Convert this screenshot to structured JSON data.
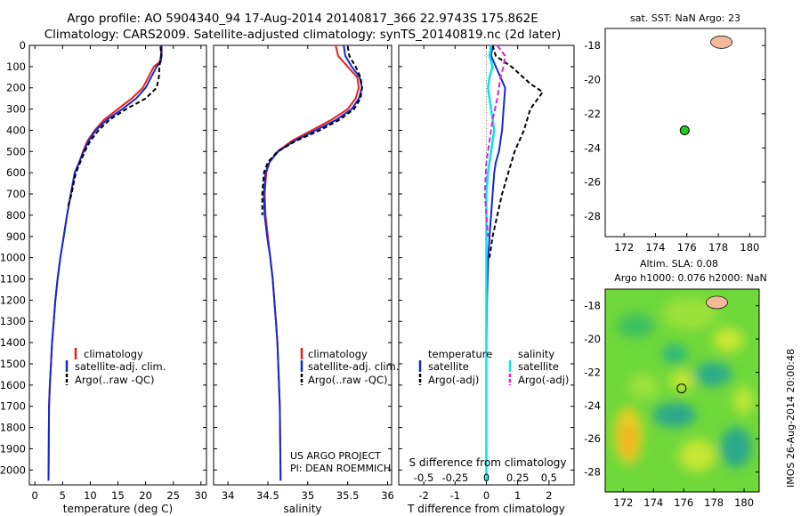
{
  "titles": {
    "line1": "Argo profile: AO 5904340_94 17-Aug-2014 20140817_366 22.9743S 175.862E",
    "line2": "Climatology: CARS2009. Satellite-adjusted climatology: synTS_20140819.nc (2d later)"
  },
  "credit": {
    "project": "US ARGO PROJECT",
    "pi": "PI: DEAN ROEMMICH"
  },
  "side_stamp": "IMOS 26-Aug-2014 20:00:48",
  "legend_left": {
    "climatology": "climatology",
    "satellite": "satellite-adj. clim.",
    "argo": "Argo(..raw -QC)"
  },
  "legend_diff": {
    "temperature_head": "temperature",
    "salinity_head": "salinity",
    "t_sat": "satellite",
    "t_argo": "Argo(-adj)",
    "s_sat": "satellite",
    "s_argo": "Argo(-adj)"
  },
  "colors": {
    "climatology": "#e8201a",
    "satellite": "#1428d4",
    "argo": "#000000",
    "s_sat": "#00e8e8",
    "s_argo": "#e020e0",
    "float": "#22cc22",
    "land": "#f4b89a"
  },
  "chart_data": [
    {
      "type": "line",
      "xlabel": "temperature (deg C)",
      "xticks": [
        0,
        5,
        10,
        15,
        20,
        25,
        30
      ],
      "xlim": [
        -1,
        31
      ],
      "ylim": [
        2070,
        0
      ],
      "yticks": [
        0,
        100,
        200,
        300,
        400,
        500,
        600,
        700,
        800,
        900,
        1000,
        1100,
        1200,
        1300,
        1400,
        1500,
        1600,
        1700,
        1800,
        1900,
        2000
      ],
      "series": [
        {
          "name": "climatology",
          "x": [
            22.8,
            22.8,
            22.5,
            21.5,
            20.5,
            19.5,
            17.5,
            15.0,
            12.5,
            10.8,
            9.5,
            8.7,
            8.0,
            7.2,
            6.5,
            5.8,
            5.2,
            4.6,
            4.1,
            3.7,
            3.4,
            3.1,
            2.9,
            2.7,
            2.55,
            2.45
          ],
          "y": [
            0,
            50,
            80,
            100,
            150,
            200,
            250,
            300,
            350,
            400,
            450,
            500,
            550,
            600,
            700,
            800,
            900,
            1000,
            1100,
            1200,
            1300,
            1400,
            1500,
            1600,
            1700,
            2050
          ]
        },
        {
          "name": "satellite-adj. clim.",
          "x": [
            22.9,
            22.9,
            22.7,
            22.0,
            21.0,
            20.0,
            18.3,
            15.8,
            13.0,
            11.0,
            9.7,
            8.8,
            8.0,
            7.2,
            6.5,
            5.8,
            5.2,
            4.6,
            4.1,
            3.7,
            3.4,
            3.1,
            2.9,
            2.7,
            2.55,
            2.45
          ],
          "y": [
            0,
            50,
            80,
            100,
            150,
            200,
            250,
            300,
            350,
            400,
            450,
            500,
            550,
            600,
            700,
            800,
            900,
            1000,
            1100,
            1200,
            1300,
            1400,
            1500,
            1600,
            1700,
            2050
          ]
        },
        {
          "name": "Argo(..raw -QC)",
          "x": [
            22.7,
            22.8,
            22.6,
            22.5,
            22.4,
            22.0,
            20.0,
            16.5,
            13.5,
            11.5,
            10.0,
            9.0,
            8.2,
            7.4,
            6.6,
            6.0
          ],
          "y": [
            5,
            50,
            80,
            100,
            150,
            200,
            250,
            300,
            350,
            400,
            450,
            500,
            550,
            600,
            700,
            760
          ]
        }
      ]
    },
    {
      "type": "line",
      "xlabel": "salinity",
      "xticks": [
        34,
        34.5,
        35,
        35.5,
        36
      ],
      "xlim": [
        33.82,
        36.05
      ],
      "ylim": [
        2070,
        0
      ],
      "series": [
        {
          "name": "climatology",
          "x": [
            35.35,
            35.38,
            35.5,
            35.62,
            35.64,
            35.6,
            35.5,
            35.3,
            35.05,
            34.8,
            34.62,
            34.52,
            34.48,
            34.46,
            34.47,
            34.5,
            34.53,
            34.56,
            34.58,
            34.6,
            34.62,
            34.63,
            34.64,
            34.65,
            34.66
          ],
          "y": [
            0,
            50,
            100,
            150,
            200,
            250,
            300,
            350,
            400,
            450,
            500,
            550,
            600,
            700,
            800,
            900,
            1000,
            1100,
            1200,
            1300,
            1400,
            1500,
            1600,
            1700,
            2050
          ]
        },
        {
          "name": "satellite-adj. clim.",
          "x": [
            35.45,
            35.47,
            35.55,
            35.65,
            35.68,
            35.64,
            35.55,
            35.36,
            35.1,
            34.83,
            34.63,
            34.52,
            34.47,
            34.45,
            34.46,
            34.49,
            34.53,
            34.56,
            34.58,
            34.6,
            34.62,
            34.63,
            34.64,
            34.65,
            34.66
          ],
          "y": [
            0,
            50,
            100,
            150,
            200,
            250,
            300,
            350,
            400,
            450,
            500,
            550,
            600,
            700,
            800,
            900,
            1000,
            1100,
            1200,
            1300,
            1400,
            1500,
            1600,
            1700,
            2050
          ]
        },
        {
          "name": "Argo(..raw -QC)",
          "x": [
            35.5,
            35.52,
            35.6,
            35.66,
            35.68,
            35.66,
            35.58,
            35.4,
            35.15,
            34.85,
            34.62,
            34.5,
            34.45,
            34.43,
            34.43
          ],
          "y": [
            5,
            50,
            100,
            150,
            200,
            250,
            300,
            350,
            400,
            450,
            500,
            550,
            600,
            700,
            800
          ]
        }
      ]
    },
    {
      "type": "line",
      "xlabel": "T difference from climatology",
      "top_label": "S difference from climatology",
      "xticks": [
        -2,
        -1,
        0,
        1,
        2
      ],
      "s_xticks": [
        -0.5,
        -0.25,
        0,
        0.25,
        0.5
      ],
      "xlim": [
        -2.8,
        2.8
      ],
      "ylim": [
        2070,
        0
      ],
      "series": [
        {
          "name": "temperature satellite",
          "x": [
            0.2,
            0.15,
            0.3,
            0.45,
            0.6,
            0.55,
            0.5,
            0.45,
            0.4,
            0.3,
            0.25,
            0.2,
            0.15,
            0.1,
            0.06,
            0.04,
            0.02,
            0.01,
            0.0,
            0.0
          ],
          "y": [
            0,
            50,
            100,
            150,
            200,
            300,
            400,
            450,
            500,
            550,
            600,
            700,
            800,
            900,
            1000,
            1100,
            1200,
            1300,
            1400,
            2050
          ]
        },
        {
          "name": "temperature Argo(-adj)",
          "x": [
            0.2,
            0.3,
            0.8,
            1.4,
            1.8,
            1.4,
            1.2,
            0.9,
            0.7,
            0.5,
            0.35,
            0.2,
            0.1
          ],
          "y": [
            0,
            50,
            100,
            180,
            220,
            300,
            400,
            500,
            600,
            700,
            800,
            900,
            1000
          ]
        },
        {
          "name": "salinity satellite",
          "x": [
            0.15,
            0.1,
            0.2,
            0.1,
            0.05,
            0.15,
            0.25,
            0.15,
            0.05,
            0.0,
            0.0,
            0.0,
            0.0
          ],
          "y": [
            0,
            50,
            100,
            150,
            200,
            300,
            400,
            500,
            600,
            700,
            900,
            1200,
            2050
          ]
        },
        {
          "name": "salinity Argo(-adj)",
          "x": [
            0.35,
            0.6,
            0.55,
            0.45,
            0.35,
            0.2,
            0.1,
            0.0,
            -0.05,
            0.05
          ],
          "y": [
            0,
            50,
            100,
            150,
            250,
            350,
            450,
            550,
            700,
            900
          ]
        }
      ]
    },
    {
      "type": "scatter",
      "title": "sat. SST: NaN Argo: 23",
      "xticks": [
        172,
        174,
        176,
        178,
        180
      ],
      "yticks": [
        -18,
        -20,
        -22,
        -24,
        -26,
        -28
      ],
      "xlim": [
        170.8,
        181.0
      ],
      "ylim": [
        -17.0,
        -29.2
      ],
      "points": [
        {
          "lon": 175.86,
          "lat": -22.97
        }
      ]
    },
    {
      "type": "heatmap",
      "title": "Altim. SLA: 0.08",
      "subtitle": "Argo h1000: 0.076 h2000: NaN",
      "xticks": [
        172,
        174,
        176,
        178,
        180
      ],
      "yticks": [
        -18,
        -20,
        -22,
        -24,
        -26,
        -28
      ],
      "xlim": [
        170.8,
        181.0
      ],
      "ylim": [
        -17.0,
        -29.2
      ],
      "points": [
        {
          "lon": 175.86,
          "lat": -22.97
        }
      ]
    }
  ]
}
